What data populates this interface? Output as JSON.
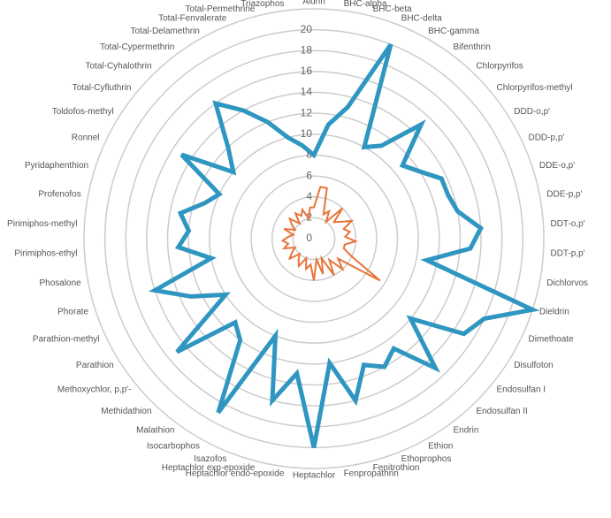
{
  "chart_data": {
    "type": "radar",
    "categories": [
      "Aldrin",
      "BHC-alpha",
      "BHC-beta",
      "BHC-delta",
      "BHC-gamma",
      "Bifenthrin",
      "Chlorpyrifos",
      "Chlorpyrifos-methyl",
      "DDD-o,p'",
      "DDD-p,p'",
      "DDE-o,p'",
      "DDE-p,p'",
      "DDT-o,p'",
      "DDT-p,p'",
      "Dichlorvos",
      "Dieldrin",
      "Dimethoate",
      "Disulfoton",
      "Endosulfan I",
      "Endosulfan II",
      "Endrin",
      "Ethion",
      "Ethoprophos",
      "Fenitrothion",
      "Fenpropathrin",
      "Heptachlor",
      "Heptachlor endo-epoxide",
      "Heptachlor exp-epoxide",
      "Isazofos",
      "Isocarbophos",
      "Malathion",
      "Methidathion",
      "Methoxychlor, p,p'-",
      "Parathion",
      "Parathion-methyl",
      "Phorate",
      "Phosalone",
      "Pirimiphos-ethyl",
      "Pirimiphos-methyl",
      "Profenofos",
      "Pyridaphenthion",
      "Ronnel",
      "Toldofos-methyl",
      "Total-Cyfluthrin",
      "Total-Cyhalothrin",
      "Total-Cypermethrin",
      "Total-Delamethrin",
      "Total-Fenvalerate",
      "Total-Permethrine",
      "Triazophos"
    ],
    "series": [
      {
        "color": "#2e96c0",
        "values": [
          8,
          11,
          13,
          20,
          10,
          11,
          15,
          11,
          12,
          13.5,
          13.5,
          14,
          16,
          15,
          11,
          22,
          18,
          17,
          12,
          17,
          13,
          14,
          13,
          16,
          12,
          20,
          13,
          16,
          10,
          19,
          12,
          11,
          17,
          10,
          13,
          16,
          10,
          13,
          12,
          13,
          11,
          10,
          15,
          10,
          12,
          16,
          14,
          12,
          10,
          9
        ]
      },
      {
        "color": "#e8733a",
        "values": [
          3,
          5,
          5,
          2.5,
          3,
          2,
          4,
          2.5,
          3,
          4,
          3,
          3.5,
          3,
          4,
          3,
          3,
          4,
          7.5,
          3,
          4,
          2.5,
          4,
          2,
          3.5,
          2,
          4,
          2.5,
          3,
          2,
          3,
          2.5,
          2,
          3,
          2.5,
          2,
          3,
          2.5,
          3,
          2.5,
          2,
          3,
          2,
          2.5,
          3,
          2,
          3,
          2.5,
          3,
          2,
          3
        ]
      }
    ],
    "ylim": [
      0,
      22
    ],
    "yticks": [
      0,
      2,
      4,
      6,
      8,
      10,
      12,
      14,
      16,
      18,
      20
    ],
    "grid": true
  }
}
